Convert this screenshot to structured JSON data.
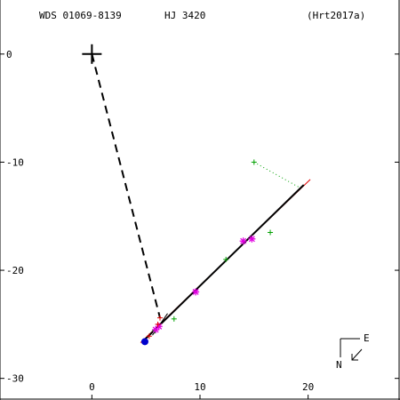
{
  "header": {
    "wds": "WDS 01069-8139",
    "name": "HJ 3420",
    "ref": "(Hrt2017a)"
  },
  "compass": {
    "east": "E",
    "north": "N"
  },
  "chart_data": {
    "type": "scatter",
    "title": "",
    "xlim": [
      -8.5,
      28.5
    ],
    "ylim": [
      -32,
      5
    ],
    "x_ticks": [
      0,
      10,
      20
    ],
    "y_ticks": [
      0,
      -10,
      -20,
      -30
    ],
    "primary": {
      "x": 0,
      "y": 0
    },
    "dashed_line": [
      [
        0,
        0
      ],
      [
        6.3,
        -24.4
      ]
    ],
    "orbit_black": [
      [
        4.8,
        -26.5
      ],
      [
        19.6,
        -12.1
      ]
    ],
    "orbit_red": [
      [
        4.5,
        -26.7
      ],
      [
        20.2,
        -11.6
      ]
    ],
    "orbit_thin": [
      [
        5.6,
        -26.0
      ],
      [
        7.0,
        -24.0
      ]
    ],
    "green_link": [
      [
        15.0,
        -10.0
      ],
      [
        19.3,
        -12.4
      ]
    ],
    "points_green_plus": [
      [
        15.0,
        -10.0
      ],
      [
        7.6,
        -24.5
      ],
      [
        12.4,
        -19.0
      ],
      [
        16.5,
        -16.5
      ],
      [
        5.8,
        -25.6
      ]
    ],
    "points_magenta_star": [
      [
        9.6,
        -22.0
      ],
      [
        14.0,
        -17.3
      ],
      [
        14.8,
        -17.1
      ],
      [
        5.9,
        -25.5
      ],
      [
        6.2,
        -25.2
      ]
    ],
    "points_red_plus": [
      [
        6.3,
        -24.4
      ],
      [
        5.3,
        -26.1
      ],
      [
        6.1,
        -25.0
      ]
    ],
    "points_blue_dot": [
      [
        4.9,
        -26.6
      ]
    ]
  }
}
